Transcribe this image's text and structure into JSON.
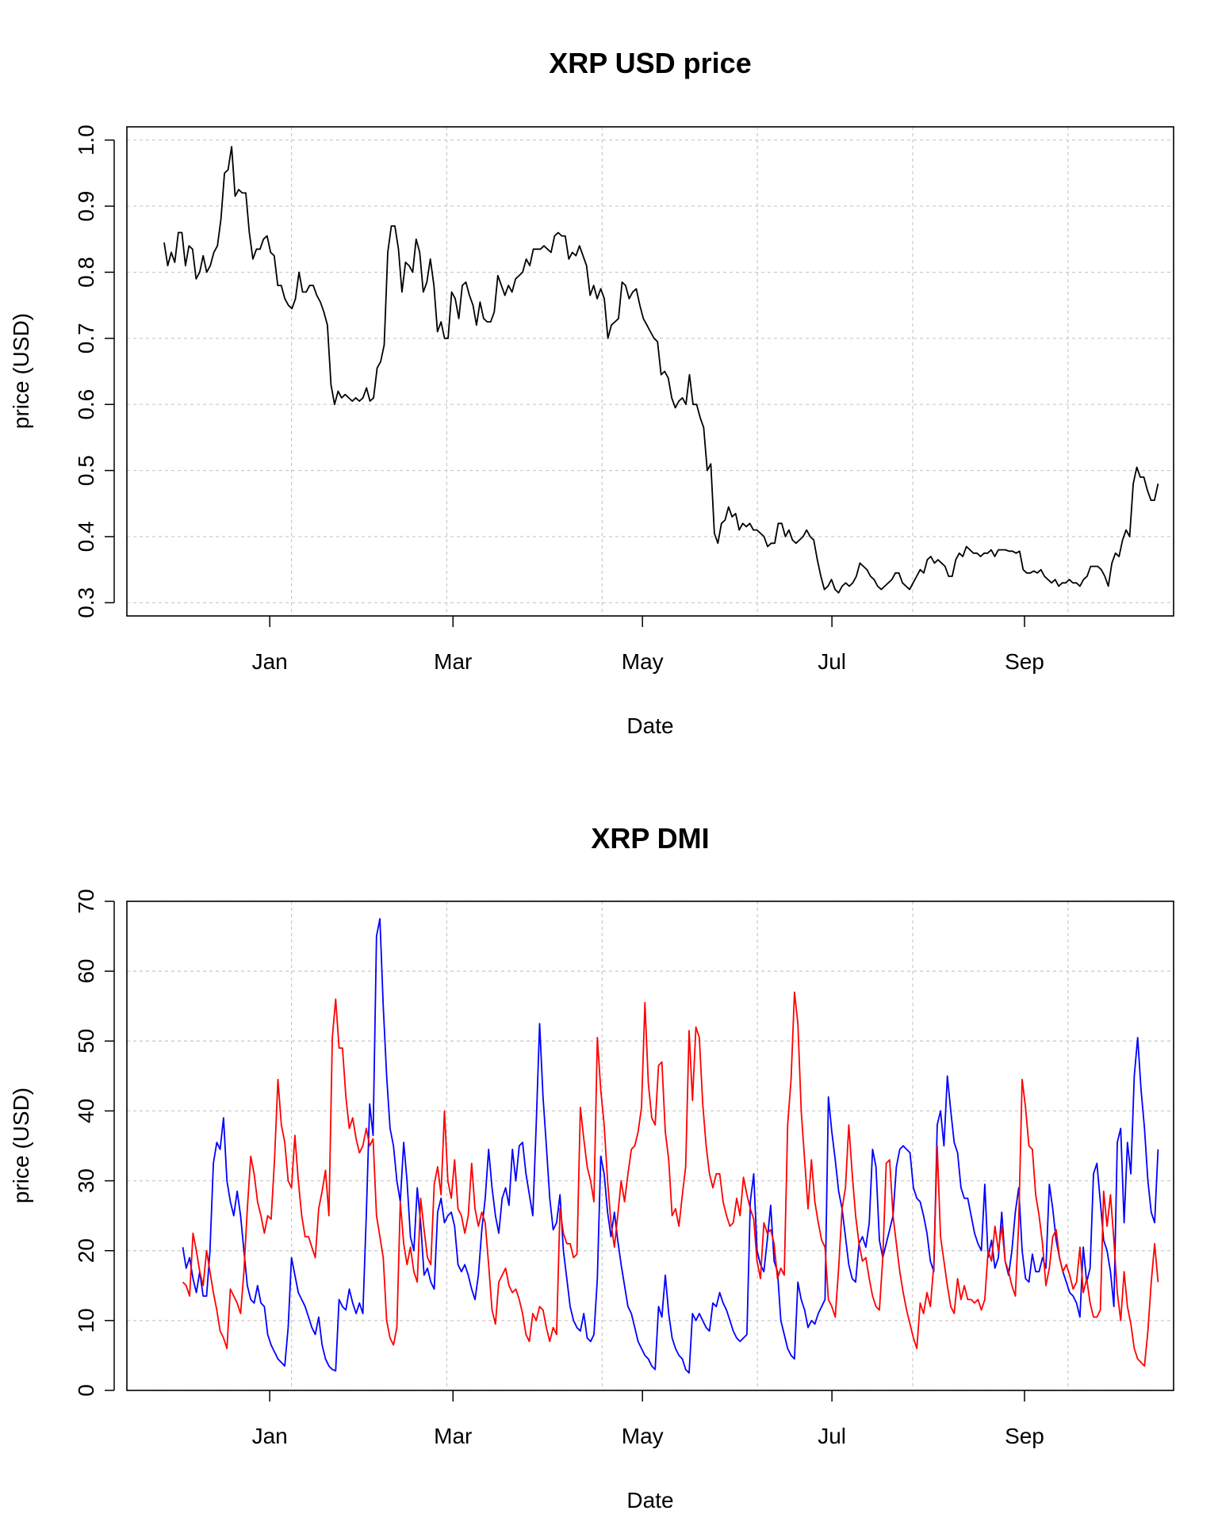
{
  "chart_data": [
    {
      "type": "line",
      "title": "XRP USD price",
      "xlabel": "Date",
      "ylabel": "price (USD)",
      "x_tick_labels": [
        "Jan",
        "Mar",
        "May",
        "Jul",
        "Sep"
      ],
      "y_ticks": [
        0.3,
        0.4,
        0.5,
        0.6,
        0.7,
        0.8,
        0.9,
        1.0
      ],
      "y_tick_labels": [
        "0.3",
        "0.4",
        "0.5",
        "0.6",
        "0.7",
        "0.8",
        "0.9",
        "1.0"
      ],
      "ylim": [
        0.28,
        1.02
      ],
      "xlim": [
        "2017-11-16",
        "2018-10-19"
      ],
      "x_tick_dates": [
        "2018-01-01",
        "2018-03-01",
        "2018-05-01",
        "2018-07-01",
        "2018-09-01"
      ],
      "x_grid_dates": [
        "2018-01-08",
        "2018-02-27",
        "2018-04-18",
        "2018-06-07",
        "2018-07-27",
        "2018-09-15"
      ],
      "grid": true,
      "series": [
        {
          "color": "#000000",
          "x_start": "2017-11-28",
          "x_end": "2018-10-14",
          "values": [
            0.845,
            0.81,
            0.83,
            0.815,
            0.86,
            0.86,
            0.81,
            0.84,
            0.835,
            0.79,
            0.8,
            0.825,
            0.8,
            0.81,
            0.83,
            0.84,
            0.88,
            0.95,
            0.955,
            0.99,
            0.915,
            0.925,
            0.92,
            0.92,
            0.86,
            0.82,
            0.835,
            0.835,
            0.85,
            0.855,
            0.83,
            0.825,
            0.78,
            0.78,
            0.76,
            0.75,
            0.745,
            0.76,
            0.8,
            0.77,
            0.77,
            0.78,
            0.78,
            0.765,
            0.755,
            0.74,
            0.72,
            0.63,
            0.6,
            0.62,
            0.61,
            0.615,
            0.61,
            0.605,
            0.61,
            0.605,
            0.61,
            0.625,
            0.605,
            0.61,
            0.655,
            0.665,
            0.69,
            0.83,
            0.87,
            0.87,
            0.835,
            0.77,
            0.815,
            0.81,
            0.8,
            0.85,
            0.83,
            0.77,
            0.785,
            0.82,
            0.78,
            0.71,
            0.725,
            0.7,
            0.7,
            0.77,
            0.76,
            0.73,
            0.78,
            0.785,
            0.765,
            0.75,
            0.72,
            0.755,
            0.73,
            0.725,
            0.725,
            0.74,
            0.795,
            0.78,
            0.765,
            0.78,
            0.77,
            0.79,
            0.795,
            0.8,
            0.82,
            0.81,
            0.835,
            0.835,
            0.835,
            0.84,
            0.835,
            0.83,
            0.855,
            0.86,
            0.855,
            0.855,
            0.82,
            0.83,
            0.825,
            0.84,
            0.825,
            0.81,
            0.765,
            0.78,
            0.76,
            0.775,
            0.76,
            0.7,
            0.72,
            0.725,
            0.73,
            0.785,
            0.78,
            0.76,
            0.77,
            0.775,
            0.75,
            0.73,
            0.72,
            0.71,
            0.7,
            0.695,
            0.645,
            0.65,
            0.64,
            0.61,
            0.595,
            0.605,
            0.61,
            0.6,
            0.645,
            0.6,
            0.6,
            0.58,
            0.565,
            0.5,
            0.51,
            0.405,
            0.39,
            0.42,
            0.425,
            0.445,
            0.43,
            0.435,
            0.41,
            0.42,
            0.415,
            0.42,
            0.41,
            0.41,
            0.405,
            0.4,
            0.385,
            0.39,
            0.39,
            0.42,
            0.42,
            0.4,
            0.41,
            0.395,
            0.39,
            0.395,
            0.4,
            0.41,
            0.4,
            0.395,
            0.365,
            0.34,
            0.32,
            0.325,
            0.335,
            0.32,
            0.315,
            0.325,
            0.33,
            0.325,
            0.33,
            0.34,
            0.36,
            0.355,
            0.35,
            0.34,
            0.335,
            0.325,
            0.32,
            0.325,
            0.33,
            0.335,
            0.345,
            0.345,
            0.33,
            0.325,
            0.32,
            0.33,
            0.34,
            0.35,
            0.345,
            0.365,
            0.37,
            0.36,
            0.365,
            0.36,
            0.355,
            0.34,
            0.34,
            0.365,
            0.375,
            0.37,
            0.385,
            0.38,
            0.375,
            0.375,
            0.37,
            0.375,
            0.375,
            0.38,
            0.37,
            0.38,
            0.38,
            0.38,
            0.378,
            0.378,
            0.375,
            0.378,
            0.35,
            0.345,
            0.345,
            0.348,
            0.345,
            0.35,
            0.34,
            0.335,
            0.33,
            0.335,
            0.325,
            0.33,
            0.33,
            0.335,
            0.33,
            0.33,
            0.325,
            0.335,
            0.34,
            0.355,
            0.355,
            0.355,
            0.35,
            0.34,
            0.325,
            0.36,
            0.375,
            0.37,
            0.395,
            0.41,
            0.4,
            0.48,
            0.505,
            0.49,
            0.49,
            0.47,
            0.455,
            0.455,
            0.48
          ]
        }
      ]
    },
    {
      "type": "line",
      "title": "XRP DMI",
      "xlabel": "Date",
      "ylabel": "price (USD)",
      "x_tick_labels": [
        "Jan",
        "Mar",
        "May",
        "Jul",
        "Sep"
      ],
      "y_ticks": [
        0,
        10,
        20,
        30,
        40,
        50,
        60,
        70
      ],
      "y_tick_labels": [
        "0",
        "10",
        "20",
        "30",
        "40",
        "50",
        "60",
        "70"
      ],
      "ylim": [
        0,
        70
      ],
      "xlim": [
        "2017-11-16",
        "2018-10-19"
      ],
      "x_tick_dates": [
        "2018-01-01",
        "2018-03-01",
        "2018-05-01",
        "2018-07-01",
        "2018-09-01"
      ],
      "x_grid_dates": [
        "2018-01-08",
        "2018-02-27",
        "2018-04-18",
        "2018-06-07",
        "2018-07-27",
        "2018-09-15"
      ],
      "grid": true,
      "series": [
        {
          "color": "#0000ff",
          "x_start": "2017-12-04",
          "x_end": "2018-10-14",
          "values": [
            20.5,
            17.5,
            19.0,
            16.0,
            14.0,
            17.0,
            13.5,
            13.5,
            20.0,
            32.5,
            35.5,
            34.5,
            39.0,
            30.0,
            27.0,
            25.0,
            28.5,
            25.0,
            20.0,
            15.0,
            13.0,
            12.5,
            15.0,
            12.5,
            12.0,
            8.0,
            6.5,
            5.5,
            4.5,
            4.0,
            3.5,
            9.0,
            19.0,
            16.5,
            14.0,
            13.0,
            12.0,
            10.5,
            9.0,
            8.0,
            10.5,
            6.5,
            4.5,
            3.5,
            3.0,
            2.8,
            13.0,
            12.0,
            11.5,
            14.5,
            12.5,
            11.0,
            12.5,
            11.0,
            25.0,
            41.0,
            36.5,
            65.0,
            67.5,
            55.0,
            45.0,
            37.5,
            35.0,
            30.0,
            27.0,
            35.5,
            30.0,
            22.0,
            20.0,
            29.0,
            24.0,
            16.5,
            17.5,
            15.5,
            14.5,
            25.5,
            27.5,
            24.0,
            25.0,
            25.5,
            23.5,
            18.0,
            17.0,
            18.0,
            16.5,
            14.5,
            13.0,
            16.5,
            23.0,
            27.5,
            34.5,
            29.0,
            25.0,
            22.5,
            27.5,
            29.0,
            26.5,
            34.5,
            30.0,
            35.0,
            35.5,
            31.0,
            28.0,
            25.0,
            38.0,
            52.5,
            42.0,
            35.0,
            27.5,
            23.0,
            24.0,
            28.0,
            20.0,
            16.0,
            12.0,
            10.0,
            9.0,
            8.5,
            11.0,
            7.5,
            7.0,
            8.0,
            16.0,
            33.5,
            31.0,
            25.5,
            22.0,
            25.5,
            21.5,
            18.0,
            15.0,
            12.0,
            11.0,
            9.0,
            7.0,
            6.0,
            5.0,
            4.5,
            3.5,
            3.0,
            12.0,
            10.5,
            16.5,
            11.0,
            7.5,
            6.0,
            5.0,
            4.5,
            3.0,
            2.5,
            11.0,
            10.0,
            11.0,
            10.0,
            9.0,
            8.5,
            12.5,
            12.0,
            14.0,
            12.5,
            11.5,
            10.0,
            8.5,
            7.5,
            7.0,
            7.5,
            8.0,
            27.0,
            31.0,
            20.0,
            18.0,
            17.0,
            21.5,
            26.5,
            18.5,
            17.0,
            10.0,
            8.0,
            6.0,
            5.0,
            4.5,
            15.5,
            13.0,
            11.5,
            9.0,
            10.0,
            9.5,
            11.0,
            12.0,
            13.0,
            42.0,
            37.0,
            33.0,
            28.5,
            26.0,
            22.0,
            18.0,
            16.0,
            15.5,
            21.0,
            22.0,
            20.5,
            24.0,
            34.5,
            32.0,
            21.5,
            19.0,
            21.0,
            23.0,
            25.0,
            32.0,
            34.5,
            35.0,
            34.5,
            34.0,
            29.0,
            27.5,
            27.0,
            25.0,
            22.5,
            18.5,
            17.0,
            38.0,
            40.0,
            35.0,
            45.0,
            40.0,
            35.5,
            34.0,
            29.0,
            27.5,
            27.5,
            25.0,
            22.5,
            21.0,
            20.0,
            29.5,
            19.0,
            21.5,
            17.5,
            19.0,
            25.5,
            18.5,
            16.5,
            20.0,
            25.5,
            29.0,
            20.0,
            16.0,
            15.5,
            19.5,
            17.0,
            17.0,
            19.0,
            17.5,
            29.5,
            26.0,
            21.5,
            19.0,
            17.0,
            15.5,
            14.0,
            13.5,
            12.5,
            10.5,
            20.5,
            15.5,
            17.5,
            31.0,
            32.5,
            27.0,
            21.5,
            20.0,
            17.0,
            12.0,
            35.5,
            37.5,
            24.0,
            35.5,
            31.0,
            45.0,
            50.5,
            43.0,
            37.5,
            30.0,
            25.5,
            24.0,
            34.5
          ]
        },
        {
          "color": "#ff0000",
          "x_start": "2017-12-04",
          "x_end": "2018-10-14",
          "values": [
            15.5,
            15.0,
            13.5,
            22.5,
            20.0,
            17.0,
            15.0,
            20.0,
            17.0,
            14.0,
            11.5,
            8.5,
            7.5,
            6.0,
            14.5,
            13.5,
            12.5,
            11.0,
            17.0,
            26.0,
            33.5,
            31.0,
            27.0,
            25.0,
            22.5,
            25.0,
            24.5,
            33.0,
            44.5,
            38.0,
            35.5,
            30.0,
            29.0,
            36.5,
            30.0,
            25.0,
            22.0,
            22.0,
            20.5,
            19.0,
            26.0,
            28.5,
            31.5,
            25.0,
            50.5,
            56.0,
            49.0,
            49.0,
            42.0,
            37.5,
            39.0,
            36.0,
            34.0,
            35.0,
            37.5,
            35.0,
            36.0,
            25.0,
            22.0,
            19.0,
            10.0,
            7.5,
            6.5,
            9.0,
            27.0,
            21.0,
            18.0,
            20.5,
            17.0,
            15.5,
            27.5,
            23.0,
            19.0,
            18.0,
            29.5,
            32.0,
            28.0,
            40.0,
            30.0,
            27.5,
            33.0,
            26.0,
            25.0,
            22.5,
            25.0,
            32.5,
            26.0,
            23.5,
            25.5,
            24.0,
            18.0,
            11.5,
            9.5,
            15.5,
            16.5,
            17.5,
            15.0,
            14.0,
            14.5,
            13.0,
            11.0,
            8.0,
            7.0,
            11.0,
            10.0,
            12.0,
            11.5,
            9.0,
            7.0,
            9.0,
            8.0,
            26.0,
            22.5,
            21.0,
            21.0,
            19.0,
            19.5,
            40.5,
            36.0,
            32.0,
            30.0,
            27.0,
            50.5,
            43.0,
            38.0,
            30.0,
            24.0,
            20.5,
            25.0,
            30.0,
            27.0,
            31.0,
            34.5,
            35.0,
            37.0,
            40.5,
            55.5,
            44.0,
            39.0,
            38.0,
            46.5,
            47.0,
            37.0,
            33.0,
            25.0,
            26.0,
            23.5,
            28.0,
            32.0,
            51.5,
            41.5,
            52.0,
            50.5,
            41.0,
            35.0,
            31.0,
            29.0,
            31.0,
            31.0,
            27.0,
            25.0,
            23.5,
            24.0,
            27.5,
            25.0,
            30.5,
            28.0,
            26.0,
            24.5,
            18.5,
            16.0,
            24.0,
            22.5,
            23.0,
            21.0,
            16.0,
            17.5,
            16.5,
            38.0,
            44.5,
            57.0,
            52.5,
            40.0,
            33.0,
            26.0,
            33.0,
            27.0,
            24.0,
            21.5,
            20.5,
            13.0,
            12.0,
            10.5,
            17.5,
            26.0,
            29.0,
            38.0,
            31.0,
            25.0,
            21.0,
            18.5,
            19.0,
            16.0,
            13.5,
            12.0,
            11.5,
            19.0,
            32.5,
            33.0,
            25.0,
            21.0,
            17.0,
            14.0,
            11.5,
            9.5,
            7.5,
            6.0,
            12.5,
            11.0,
            14.0,
            12.0,
            18.0,
            35.0,
            22.0,
            18.5,
            15.0,
            12.0,
            11.0,
            16.0,
            13.0,
            15.0,
            13.0,
            13.0,
            12.5,
            13.0,
            11.5,
            13.0,
            20.0,
            18.5,
            23.5,
            20.0,
            23.5,
            18.5,
            17.0,
            15.0,
            13.5,
            24.0,
            44.5,
            40.5,
            35.0,
            34.5,
            28.0,
            25.0,
            21.0,
            15.0,
            17.5,
            22.0,
            23.0,
            19.0,
            17.0,
            18.0,
            16.5,
            14.5,
            15.5,
            20.5,
            14.0,
            16.0,
            12.5,
            10.5,
            10.5,
            11.5,
            28.5,
            23.5,
            28.0,
            21.5,
            14.0,
            10.0,
            17.0,
            12.0,
            9.5,
            6.0,
            4.5,
            4.0,
            3.5,
            8.5,
            15.5,
            21.0,
            15.5
          ]
        }
      ]
    }
  ]
}
